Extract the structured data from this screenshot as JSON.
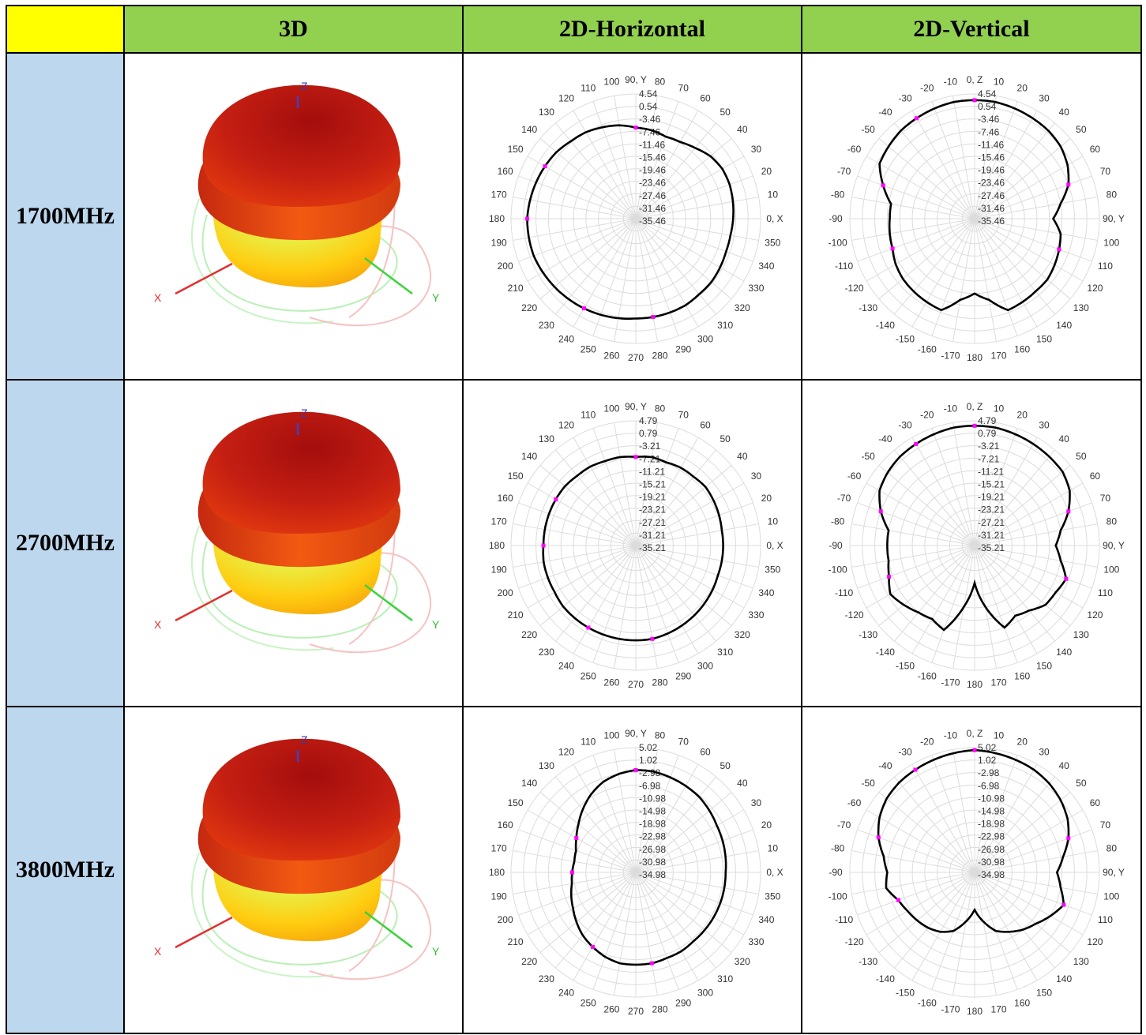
{
  "header": {
    "corner": "",
    "col_3d": "3D",
    "col_h": "2D-Horizontal",
    "col_v": "2D-Vertical"
  },
  "axis_letters": {
    "x": "X",
    "y": "Y",
    "z": "Z"
  },
  "horizontal_angle_labels": [
    "0, X",
    "10",
    "20",
    "30",
    "40",
    "50",
    "60",
    "70",
    "80",
    "90, Y",
    "100",
    "110",
    "120",
    "130",
    "140",
    "150",
    "160",
    "170",
    "180",
    "190",
    "200",
    "210",
    "220",
    "230",
    "240",
    "250",
    "260",
    "270",
    "280",
    "290",
    "300",
    "310",
    "320",
    "330",
    "340",
    "350"
  ],
  "vertical_angle_labels": [
    "0, Z",
    "10",
    "20",
    "30",
    "40",
    "50",
    "60",
    "70",
    "80",
    "90, Y",
    "100",
    "110",
    "120",
    "130",
    "140",
    "150",
    "160",
    "170",
    "180",
    "-170",
    "-160",
    "-150",
    "-140",
    "-130",
    "-120",
    "-110",
    "-100",
    "-90",
    "-80",
    "-70",
    "-60",
    "-50",
    "-40",
    "-30",
    "-20",
    "-10"
  ],
  "colors": {
    "corner": "#ffff00",
    "header": "#92d050",
    "freq": "#bdd7ee",
    "trace": "#000000",
    "marker": "#ff00ff"
  },
  "rows": [
    {
      "freq": "1700MHz",
      "scale": [
        "4.54",
        "0.54",
        "-3.46",
        "-7.46",
        "-11.46",
        "-15.46",
        "-19.46",
        "-23.46",
        "-27.46",
        "-31.46",
        "-35.46"
      ],
      "h_pattern": [
        0.78,
        0.79,
        0.8,
        0.8,
        0.78,
        0.74,
        0.71,
        0.7,
        0.72,
        0.73,
        0.76,
        0.78,
        0.8,
        0.81,
        0.83,
        0.84,
        0.85,
        0.86,
        0.87,
        0.87,
        0.87,
        0.86,
        0.85,
        0.84,
        0.83,
        0.82,
        0.81,
        0.8,
        0.8,
        0.8,
        0.8,
        0.79,
        0.79,
        0.78,
        0.77,
        0.77
      ],
      "v_pattern": [
        0.95,
        0.95,
        0.94,
        0.93,
        0.92,
        0.9,
        0.86,
        0.8,
        0.7,
        0.63,
        0.7,
        0.72,
        0.74,
        0.76,
        0.76,
        0.77,
        0.78,
        0.66,
        0.6,
        0.66,
        0.78,
        0.77,
        0.76,
        0.75,
        0.73,
        0.7,
        0.69,
        0.68,
        0.68,
        0.78,
        0.88,
        0.9,
        0.92,
        0.93,
        0.94,
        0.95
      ]
    },
    {
      "freq": "2700MHz",
      "scale": [
        "4.79",
        "0.79",
        "-3.21",
        "-7.21",
        "-11.21",
        "-15.21",
        "-19.21",
        "-23.21",
        "-27.21",
        "-31.21",
        "-35.21"
      ],
      "h_pattern": [
        0.7,
        0.7,
        0.71,
        0.72,
        0.73,
        0.72,
        0.72,
        0.71,
        0.72,
        0.71,
        0.72,
        0.72,
        0.73,
        0.73,
        0.74,
        0.74,
        0.74,
        0.74,
        0.74,
        0.75,
        0.75,
        0.75,
        0.76,
        0.76,
        0.76,
        0.76,
        0.76,
        0.76,
        0.76,
        0.75,
        0.74,
        0.73,
        0.72,
        0.71,
        0.7,
        0.7
      ],
      "v_pattern": [
        0.96,
        0.96,
        0.95,
        0.94,
        0.93,
        0.92,
        0.88,
        0.8,
        0.7,
        0.65,
        0.7,
        0.78,
        0.75,
        0.74,
        0.68,
        0.65,
        0.7,
        0.5,
        0.3,
        0.5,
        0.72,
        0.68,
        0.7,
        0.74,
        0.78,
        0.73,
        0.7,
        0.7,
        0.7,
        0.8,
        0.88,
        0.91,
        0.93,
        0.94,
        0.95,
        0.96
      ]
    },
    {
      "freq": "3800MHz",
      "scale": [
        "5.02",
        "1.02",
        "-2.98",
        "-6.98",
        "-10.98",
        "-14.98",
        "-18.98",
        "-22.98",
        "-26.98",
        "-30.98",
        "-34.98"
      ],
      "h_pattern": [
        0.72,
        0.73,
        0.74,
        0.75,
        0.77,
        0.79,
        0.8,
        0.81,
        0.82,
        0.82,
        0.8,
        0.77,
        0.72,
        0.66,
        0.6,
        0.55,
        0.51,
        0.5,
        0.51,
        0.52,
        0.55,
        0.58,
        0.62,
        0.66,
        0.69,
        0.72,
        0.74,
        0.74,
        0.74,
        0.73,
        0.73,
        0.72,
        0.72,
        0.72,
        0.72,
        0.72
      ],
      "v_pattern": [
        0.98,
        0.97,
        0.96,
        0.95,
        0.93,
        0.9,
        0.86,
        0.8,
        0.72,
        0.66,
        0.7,
        0.76,
        0.7,
        0.64,
        0.6,
        0.55,
        0.5,
        0.4,
        0.3,
        0.4,
        0.5,
        0.55,
        0.58,
        0.6,
        0.62,
        0.65,
        0.72,
        0.7,
        0.74,
        0.82,
        0.88,
        0.92,
        0.94,
        0.95,
        0.96,
        0.97
      ]
    }
  ]
}
